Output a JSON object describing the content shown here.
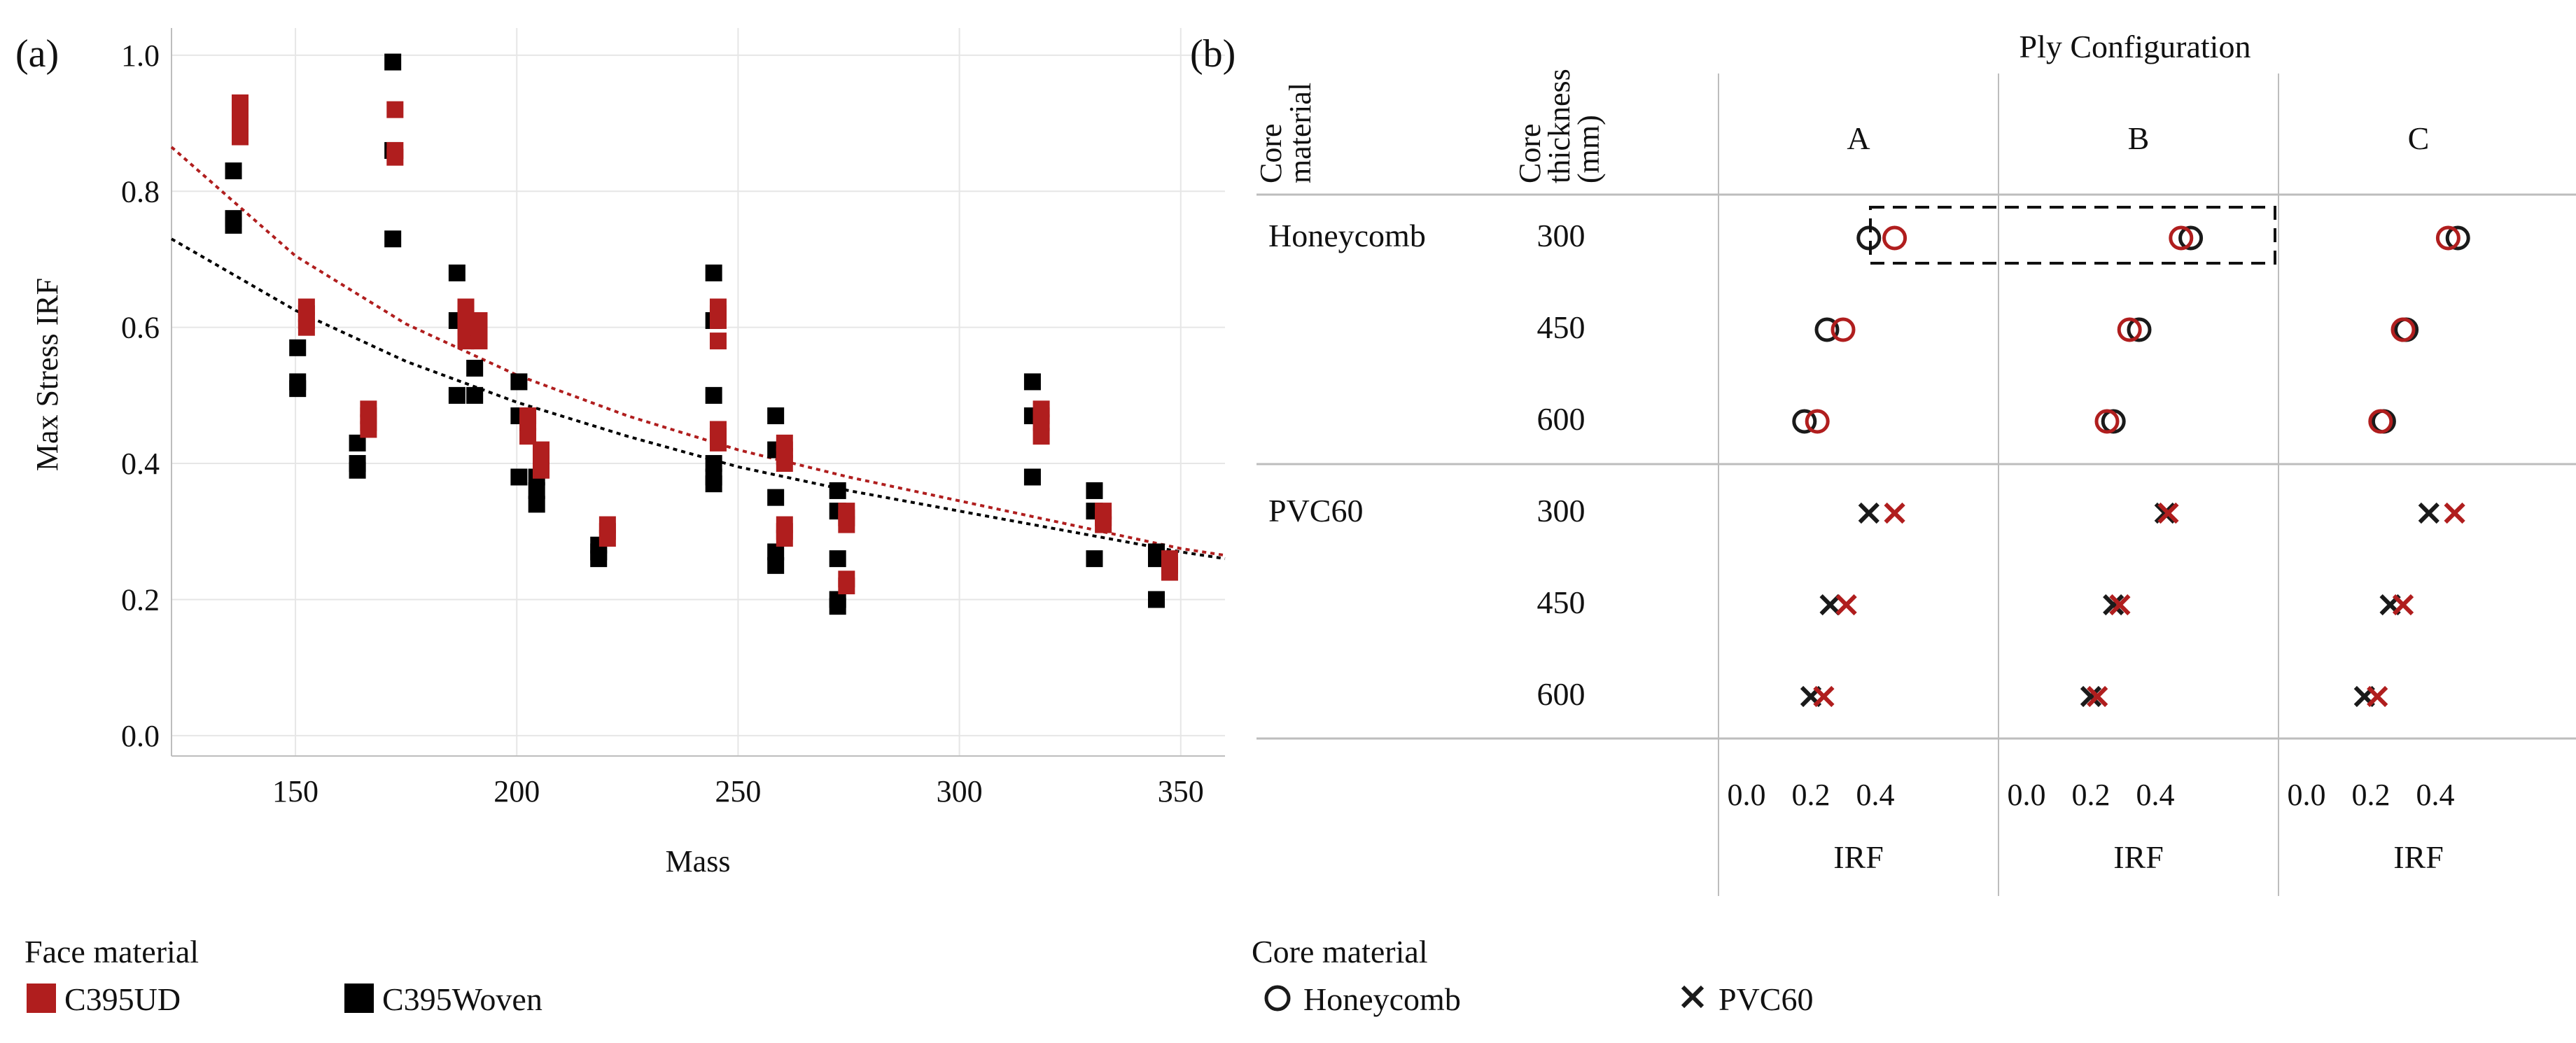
{
  "panel_a": {
    "label": "(a)",
    "chart_data": {
      "type": "scatter",
      "xlabel": "Mass",
      "ylabel": "Max Stress IRF",
      "xlim": [
        122,
        360
      ],
      "ylim": [
        -0.03,
        1.04
      ],
      "xticks": [
        150,
        200,
        250,
        300,
        350
      ],
      "yticks": [
        0.0,
        0.2,
        0.4,
        0.6,
        0.8,
        1.0
      ],
      "grid": true,
      "series": [
        {
          "name": "C395UD",
          "color": "#b01e1e",
          "points": [
            [
              137.5,
              0.88
            ],
            [
              137.5,
              0.9
            ],
            [
              137.5,
              0.92
            ],
            [
              137.5,
              0.93
            ],
            [
              152.5,
              0.6
            ],
            [
              152.5,
              0.61
            ],
            [
              152.5,
              0.62
            ],
            [
              152.5,
              0.63
            ],
            [
              166.5,
              0.45
            ],
            [
              166.5,
              0.46
            ],
            [
              166.5,
              0.47
            ],
            [
              166.5,
              0.48
            ],
            [
              172.5,
              0.85
            ],
            [
              172.5,
              0.86
            ],
            [
              172.5,
              0.92
            ],
            [
              188.5,
              0.58
            ],
            [
              188.5,
              0.6
            ],
            [
              188.5,
              0.62
            ],
            [
              188.5,
              0.63
            ],
            [
              191.5,
              0.58
            ],
            [
              191.5,
              0.59
            ],
            [
              191.5,
              0.6
            ],
            [
              191.5,
              0.61
            ],
            [
              202.5,
              0.44
            ],
            [
              202.5,
              0.46
            ],
            [
              202.5,
              0.47
            ],
            [
              205.5,
              0.39
            ],
            [
              205.5,
              0.4
            ],
            [
              205.5,
              0.41
            ],
            [
              205.5,
              0.42
            ],
            [
              220.5,
              0.29
            ],
            [
              220.5,
              0.3
            ],
            [
              220.5,
              0.31
            ],
            [
              245.5,
              0.43
            ],
            [
              245.5,
              0.44
            ],
            [
              245.5,
              0.45
            ],
            [
              245.5,
              0.58
            ],
            [
              245.5,
              0.61
            ],
            [
              245.5,
              0.62
            ],
            [
              245.5,
              0.63
            ],
            [
              260.5,
              0.29
            ],
            [
              260.5,
              0.3
            ],
            [
              260.5,
              0.31
            ],
            [
              260.5,
              0.4
            ],
            [
              260.5,
              0.41
            ],
            [
              260.5,
              0.42
            ],
            [
              260.5,
              0.43
            ],
            [
              274.5,
              0.22
            ],
            [
              274.5,
              0.23
            ],
            [
              274.5,
              0.31
            ],
            [
              274.5,
              0.32
            ],
            [
              274.5,
              0.33
            ],
            [
              318.5,
              0.44
            ],
            [
              318.5,
              0.46
            ],
            [
              318.5,
              0.47
            ],
            [
              318.5,
              0.48
            ],
            [
              332.5,
              0.31
            ],
            [
              332.5,
              0.32
            ],
            [
              332.5,
              0.33
            ],
            [
              347.5,
              0.24
            ],
            [
              347.5,
              0.25
            ],
            [
              347.5,
              0.26
            ]
          ],
          "trend_curve": [
            [
              122,
              0.865
            ],
            [
              150,
              0.705
            ],
            [
              175,
              0.605
            ],
            [
              200,
              0.53
            ],
            [
              225,
              0.47
            ],
            [
              250,
              0.42
            ],
            [
              275,
              0.38
            ],
            [
              300,
              0.345
            ],
            [
              325,
              0.31
            ],
            [
              350,
              0.275
            ],
            [
              360,
              0.265
            ]
          ]
        },
        {
          "name": "C395Woven",
          "color": "#000000",
          "points": [
            [
              136,
              0.75
            ],
            [
              136,
              0.76
            ],
            [
              136,
              0.83
            ],
            [
              150.5,
              0.51
            ],
            [
              150.5,
              0.52
            ],
            [
              150.5,
              0.57
            ],
            [
              164,
              0.39
            ],
            [
              164,
              0.4
            ],
            [
              164,
              0.43
            ],
            [
              172,
              0.73
            ],
            [
              172,
              0.86
            ],
            [
              172,
              0.99
            ],
            [
              186.5,
              0.5
            ],
            [
              186.5,
              0.61
            ],
            [
              186.5,
              0.68
            ],
            [
              190.5,
              0.5
            ],
            [
              190.5,
              0.54
            ],
            [
              200.5,
              0.38
            ],
            [
              200.5,
              0.47
            ],
            [
              200.5,
              0.52
            ],
            [
              204.5,
              0.34
            ],
            [
              204.5,
              0.36
            ],
            [
              204.5,
              0.38
            ],
            [
              218.5,
              0.26
            ],
            [
              218.5,
              0.27
            ],
            [
              218.5,
              0.28
            ],
            [
              244.5,
              0.37
            ],
            [
              244.5,
              0.38
            ],
            [
              244.5,
              0.4
            ],
            [
              244.5,
              0.5
            ],
            [
              244.5,
              0.61
            ],
            [
              244.5,
              0.68
            ],
            [
              258.5,
              0.25
            ],
            [
              258.5,
              0.27
            ],
            [
              258.5,
              0.35
            ],
            [
              258.5,
              0.42
            ],
            [
              258.5,
              0.47
            ],
            [
              272.5,
              0.19
            ],
            [
              272.5,
              0.2
            ],
            [
              272.5,
              0.26
            ],
            [
              272.5,
              0.33
            ],
            [
              272.5,
              0.36
            ],
            [
              316.5,
              0.38
            ],
            [
              316.5,
              0.47
            ],
            [
              316.5,
              0.52
            ],
            [
              330.5,
              0.26
            ],
            [
              330.5,
              0.33
            ],
            [
              330.5,
              0.36
            ],
            [
              344.5,
              0.2
            ],
            [
              344.5,
              0.26
            ],
            [
              344.5,
              0.27
            ]
          ],
          "trend_curve": [
            [
              122,
              0.73
            ],
            [
              150,
              0.625
            ],
            [
              175,
              0.55
            ],
            [
              200,
              0.49
            ],
            [
              225,
              0.44
            ],
            [
              250,
              0.395
            ],
            [
              275,
              0.36
            ],
            [
              300,
              0.33
            ],
            [
              325,
              0.3
            ],
            [
              350,
              0.27
            ],
            [
              360,
              0.26
            ]
          ]
        }
      ]
    }
  },
  "panel_b": {
    "label": "(b)",
    "title": "Ply Configuration",
    "row_header_1": [
      "Core",
      "material"
    ],
    "row_header_2": [
      "Core",
      "thickness",
      "(mm)"
    ],
    "columns": [
      "A",
      "B",
      "C"
    ],
    "xlabel": "IRF",
    "xticks": [
      "0.0",
      "0.2",
      "0.4"
    ],
    "chart_data": {
      "type": "scatter",
      "xlim": [
        -0.05,
        0.52
      ],
      "series_styles": [
        {
          "name": "C395UD",
          "color": "#b01e1e"
        },
        {
          "name": "C395Woven",
          "color": "#1a1a1a"
        }
      ],
      "groups": [
        {
          "core": "Honeycomb",
          "marker": "circle",
          "rows": [
            {
              "thickness": "300",
              "values": {
                "A": {
                  "C395UD": 0.46,
                  "C395Woven": 0.38
                },
                "B": {
                  "C395UD": 0.48,
                  "C395Woven": 0.51
                },
                "C": {
                  "C395UD": 0.44,
                  "C395Woven": 0.47
                }
              }
            },
            {
              "thickness": "450",
              "values": {
                "A": {
                  "C395UD": 0.3,
                  "C395Woven": 0.25
                },
                "B": {
                  "C395UD": 0.32,
                  "C395Woven": 0.35
                },
                "C": {
                  "C395UD": 0.3,
                  "C395Woven": 0.31
                }
              }
            },
            {
              "thickness": "600",
              "values": {
                "A": {
                  "C395UD": 0.22,
                  "C395Woven": 0.18
                },
                "B": {
                  "C395UD": 0.25,
                  "C395Woven": 0.27
                },
                "C": {
                  "C395UD": 0.23,
                  "C395Woven": 0.24
                }
              }
            }
          ]
        },
        {
          "core": "PVC60",
          "marker": "x",
          "rows": [
            {
              "thickness": "300",
              "values": {
                "A": {
                  "C395UD": 0.46,
                  "C395Woven": 0.38
                },
                "B": {
                  "C395UD": 0.44,
                  "C395Woven": 0.43
                },
                "C": {
                  "C395UD": 0.46,
                  "C395Woven": 0.38
                }
              }
            },
            {
              "thickness": "450",
              "values": {
                "A": {
                  "C395UD": 0.31,
                  "C395Woven": 0.26
                },
                "B": {
                  "C395UD": 0.29,
                  "C395Woven": 0.27
                },
                "C": {
                  "C395UD": 0.3,
                  "C395Woven": 0.26
                }
              }
            },
            {
              "thickness": "600",
              "values": {
                "A": {
                  "C395UD": 0.24,
                  "C395Woven": 0.2
                },
                "B": {
                  "C395UD": 0.22,
                  "C395Woven": 0.2
                },
                "C": {
                  "C395UD": 0.22,
                  "C395Woven": 0.18
                }
              }
            }
          ]
        }
      ],
      "highlight": {
        "row": "Honeycomb 300",
        "columns": [
          "A",
          "B"
        ],
        "style": "dashed box"
      }
    }
  },
  "legend_face": {
    "title": "Face material",
    "items": [
      {
        "label": "C395UD",
        "color": "#b01e1e"
      },
      {
        "label": "C395Woven",
        "color": "#000000"
      }
    ]
  },
  "legend_core": {
    "title": "Core material",
    "items": [
      {
        "label": "Honeycomb",
        "marker": "circle"
      },
      {
        "label": "PVC60",
        "marker": "x"
      }
    ]
  }
}
